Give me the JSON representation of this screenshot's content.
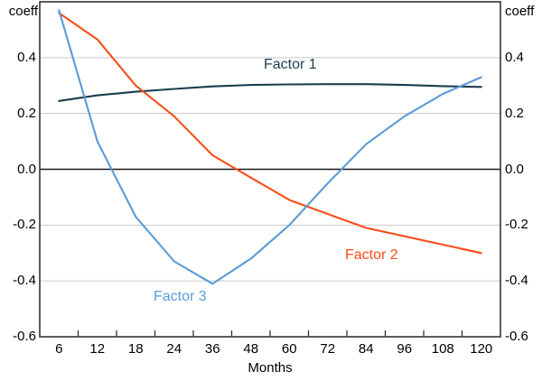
{
  "chart_data": {
    "type": "line",
    "xlabel": "Months",
    "ylabel_left": "coeff",
    "ylabel_right": "coeff",
    "x_categories": [
      6,
      12,
      18,
      24,
      36,
      48,
      60,
      72,
      84,
      96,
      108,
      120
    ],
    "x_tick_labels": [
      "6",
      "12",
      "18",
      "24",
      "36",
      "48",
      "60",
      "72",
      "84",
      "96",
      "108",
      "120"
    ],
    "ylim": [
      -0.6,
      0.6
    ],
    "y_tick_values": [
      0.4,
      0.2,
      0.0,
      -0.2,
      -0.4,
      -0.6
    ],
    "y_tick_labels": [
      "0.4",
      "0.2",
      "0.0",
      "-0.2",
      "-0.4",
      "-0.6"
    ],
    "y_gridline_values": [
      0.4,
      0.2,
      -0.2,
      -0.4
    ],
    "zero_line": true,
    "grid": "horizontal",
    "legend_position": "inline-annotations",
    "colors": {
      "grid": "#c9c9c9",
      "frame": "#333333",
      "zero_line": "#1a1a1a",
      "text": "#000000"
    },
    "series": [
      {
        "name": "Factor 1",
        "color": "#1b3e4f",
        "values": [
          0.245,
          0.265,
          0.278,
          0.288,
          0.297,
          0.302,
          0.304,
          0.305,
          0.305,
          0.302,
          0.298,
          0.295
        ]
      },
      {
        "name": "Factor 2",
        "color": "#f94d1a",
        "values": [
          0.56,
          0.465,
          0.3,
          0.19,
          0.05,
          -0.03,
          -0.11,
          -0.16,
          -0.21,
          -0.24,
          -0.27,
          -0.3
        ]
      },
      {
        "name": "Factor 3",
        "color": "#5b9bd5",
        "values": [
          0.57,
          0.1,
          -0.17,
          -0.33,
          -0.41,
          -0.32,
          -0.2,
          -0.05,
          0.09,
          0.19,
          0.27,
          0.33
        ]
      }
    ]
  }
}
